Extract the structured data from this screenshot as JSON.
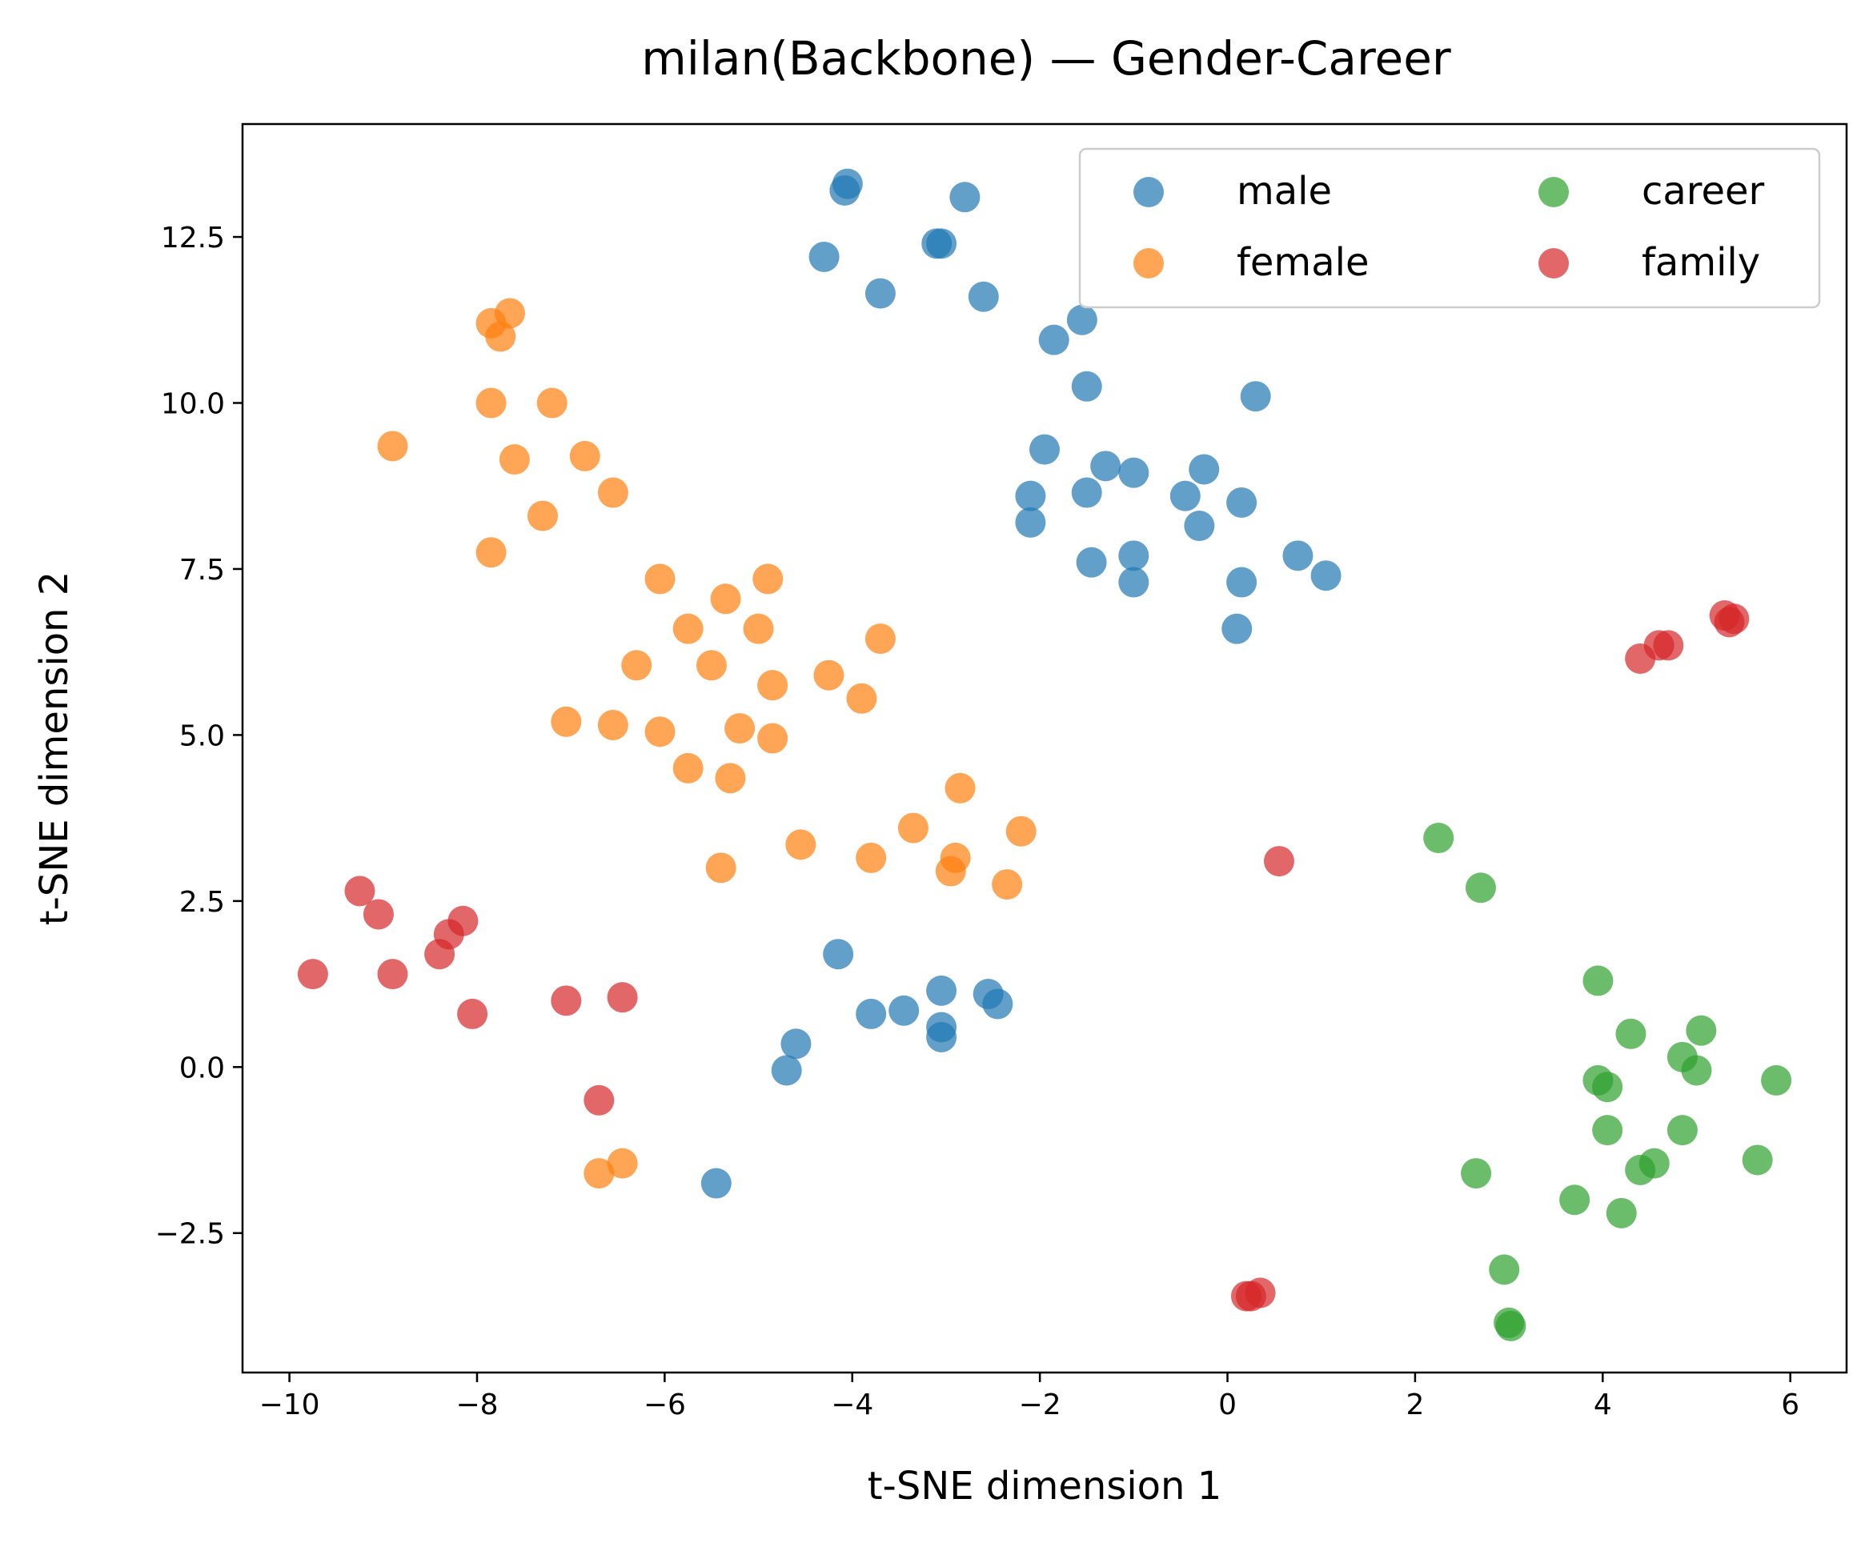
{
  "chart_data": {
    "type": "scatter",
    "title": "milan(Backbone) — Gender-Career",
    "xlabel": "t-SNE dimension 1",
    "ylabel": "t-SNE dimension 2",
    "xlim": [
      -10.5,
      6.6
    ],
    "ylim": [
      -4.6,
      14.2
    ],
    "xticks": [
      -10,
      -8,
      -6,
      -4,
      -2,
      0,
      2,
      4,
      6
    ],
    "xtick_labels": [
      "−10",
      "−8",
      "−6",
      "−4",
      "−2",
      "0",
      "2",
      "4",
      "6"
    ],
    "yticks": [
      -2.5,
      0.0,
      2.5,
      5.0,
      7.5,
      10.0,
      12.5
    ],
    "ytick_labels": [
      "−2.5",
      "0.0",
      "2.5",
      "5.0",
      "7.5",
      "10.0",
      "12.5"
    ],
    "grid": false,
    "legend_position": "top-right",
    "legend_columns": 2,
    "series": [
      {
        "name": "male",
        "color": "#1f77b4",
        "points": [
          [
            -4.05,
            13.3
          ],
          [
            -4.08,
            13.2
          ],
          [
            -2.8,
            13.1
          ],
          [
            -3.1,
            12.4
          ],
          [
            -3.05,
            12.4
          ],
          [
            -4.3,
            12.2
          ],
          [
            -3.7,
            11.65
          ],
          [
            -2.6,
            11.6
          ],
          [
            -1.55,
            11.25
          ],
          [
            -1.85,
            10.95
          ],
          [
            -1.5,
            10.25
          ],
          [
            0.3,
            10.1
          ],
          [
            -1.95,
            9.3
          ],
          [
            -1.3,
            9.05
          ],
          [
            -1.0,
            8.95
          ],
          [
            -0.25,
            9.0
          ],
          [
            -2.1,
            8.6
          ],
          [
            -1.5,
            8.65
          ],
          [
            -0.45,
            8.6
          ],
          [
            0.15,
            8.5
          ],
          [
            -2.1,
            8.2
          ],
          [
            -0.3,
            8.15
          ],
          [
            -1.45,
            7.6
          ],
          [
            -1.0,
            7.7
          ],
          [
            0.75,
            7.7
          ],
          [
            1.05,
            7.4
          ],
          [
            -1.0,
            7.3
          ],
          [
            0.15,
            7.3
          ],
          [
            0.1,
            6.6
          ],
          [
            -4.15,
            1.7
          ],
          [
            -3.05,
            1.15
          ],
          [
            -2.55,
            1.1
          ],
          [
            -2.45,
            0.95
          ],
          [
            -3.8,
            0.8
          ],
          [
            -3.45,
            0.85
          ],
          [
            -3.05,
            0.6
          ],
          [
            -3.05,
            0.45
          ],
          [
            -4.6,
            0.35
          ],
          [
            -4.7,
            -0.05
          ],
          [
            -5.45,
            -1.75
          ]
        ]
      },
      {
        "name": "female",
        "color": "#ff7f0e",
        "points": [
          [
            -7.65,
            11.35
          ],
          [
            -7.85,
            11.2
          ],
          [
            -7.75,
            11.0
          ],
          [
            -7.85,
            10.0
          ],
          [
            -7.2,
            10.0
          ],
          [
            -8.9,
            9.35
          ],
          [
            -7.6,
            9.15
          ],
          [
            -6.85,
            9.2
          ],
          [
            -6.55,
            8.65
          ],
          [
            -7.3,
            8.3
          ],
          [
            -7.85,
            7.75
          ],
          [
            -6.05,
            7.35
          ],
          [
            -4.9,
            7.35
          ],
          [
            -5.35,
            7.05
          ],
          [
            -5.75,
            6.6
          ],
          [
            -5.0,
            6.6
          ],
          [
            -3.7,
            6.45
          ],
          [
            -6.3,
            6.05
          ],
          [
            -5.5,
            6.05
          ],
          [
            -4.25,
            5.9
          ],
          [
            -4.85,
            5.75
          ],
          [
            -3.9,
            5.55
          ],
          [
            -7.05,
            5.2
          ],
          [
            -6.55,
            5.15
          ],
          [
            -6.05,
            5.05
          ],
          [
            -5.2,
            5.1
          ],
          [
            -4.85,
            4.95
          ],
          [
            -5.75,
            4.5
          ],
          [
            -5.3,
            4.35
          ],
          [
            -2.85,
            4.2
          ],
          [
            -3.35,
            3.6
          ],
          [
            -2.2,
            3.55
          ],
          [
            -4.55,
            3.35
          ],
          [
            -3.8,
            3.15
          ],
          [
            -2.9,
            3.15
          ],
          [
            -2.95,
            2.95
          ],
          [
            -5.4,
            3.0
          ],
          [
            -2.35,
            2.75
          ],
          [
            -6.45,
            -1.45
          ],
          [
            -6.7,
            -1.6
          ]
        ]
      },
      {
        "name": "career",
        "color": "#2ca02c",
        "points": [
          [
            2.25,
            3.45
          ],
          [
            2.7,
            2.7
          ],
          [
            3.95,
            1.3
          ],
          [
            4.3,
            0.5
          ],
          [
            5.05,
            0.55
          ],
          [
            4.85,
            0.15
          ],
          [
            5.0,
            -0.05
          ],
          [
            3.95,
            -0.2
          ],
          [
            4.05,
            -0.3
          ],
          [
            5.85,
            -0.2
          ],
          [
            4.05,
            -0.95
          ],
          [
            4.85,
            -0.95
          ],
          [
            4.55,
            -1.45
          ],
          [
            4.4,
            -1.55
          ],
          [
            5.65,
            -1.4
          ],
          [
            2.65,
            -1.6
          ],
          [
            3.7,
            -2.0
          ],
          [
            4.2,
            -2.2
          ],
          [
            2.95,
            -3.05
          ],
          [
            3.0,
            -3.85
          ],
          [
            3.02,
            -3.9
          ]
        ]
      },
      {
        "name": "family",
        "color": "#d62728",
        "points": [
          [
            5.3,
            6.8
          ],
          [
            5.4,
            6.75
          ],
          [
            5.35,
            6.7
          ],
          [
            4.6,
            6.35
          ],
          [
            4.7,
            6.35
          ],
          [
            4.4,
            6.15
          ],
          [
            0.55,
            3.1
          ],
          [
            -9.25,
            2.65
          ],
          [
            -9.05,
            2.3
          ],
          [
            -8.15,
            2.2
          ],
          [
            -8.3,
            2.0
          ],
          [
            -8.4,
            1.7
          ],
          [
            -9.75,
            1.4
          ],
          [
            -8.9,
            1.4
          ],
          [
            -8.05,
            0.8
          ],
          [
            -7.05,
            1.0
          ],
          [
            -6.45,
            1.05
          ],
          [
            -6.7,
            -0.5
          ],
          [
            0.2,
            -3.45
          ],
          [
            0.35,
            -3.4
          ],
          [
            0.25,
            -3.45
          ]
        ]
      }
    ]
  }
}
